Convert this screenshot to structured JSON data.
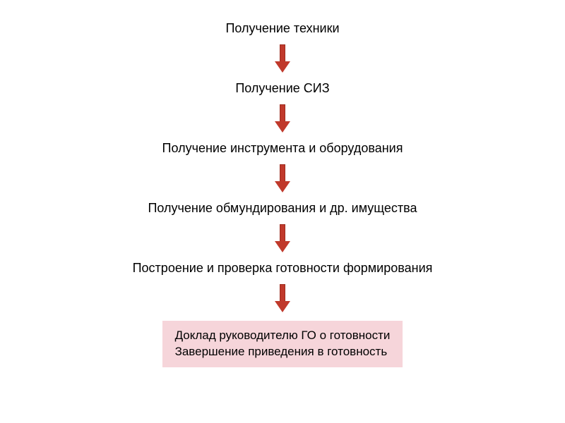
{
  "flow": {
    "steps": [
      "Получение техники",
      "Получение СИЗ",
      "Получение инструмента и оборудования",
      "Получение обмундирования и др. имущества",
      "Построение и проверка готовности формирования"
    ],
    "final": {
      "line1": "Доклад руководителю ГО о готовности",
      "line2": "Завершение приведения в готовность",
      "background_color": "#f6d5da"
    },
    "arrow": {
      "fill_color": "#c0392b",
      "stroke_color": "#9e2c1f"
    },
    "background_color": "#ffffff",
    "text_color": "#000000",
    "step_fontsize": 18,
    "final_fontsize": 17
  }
}
